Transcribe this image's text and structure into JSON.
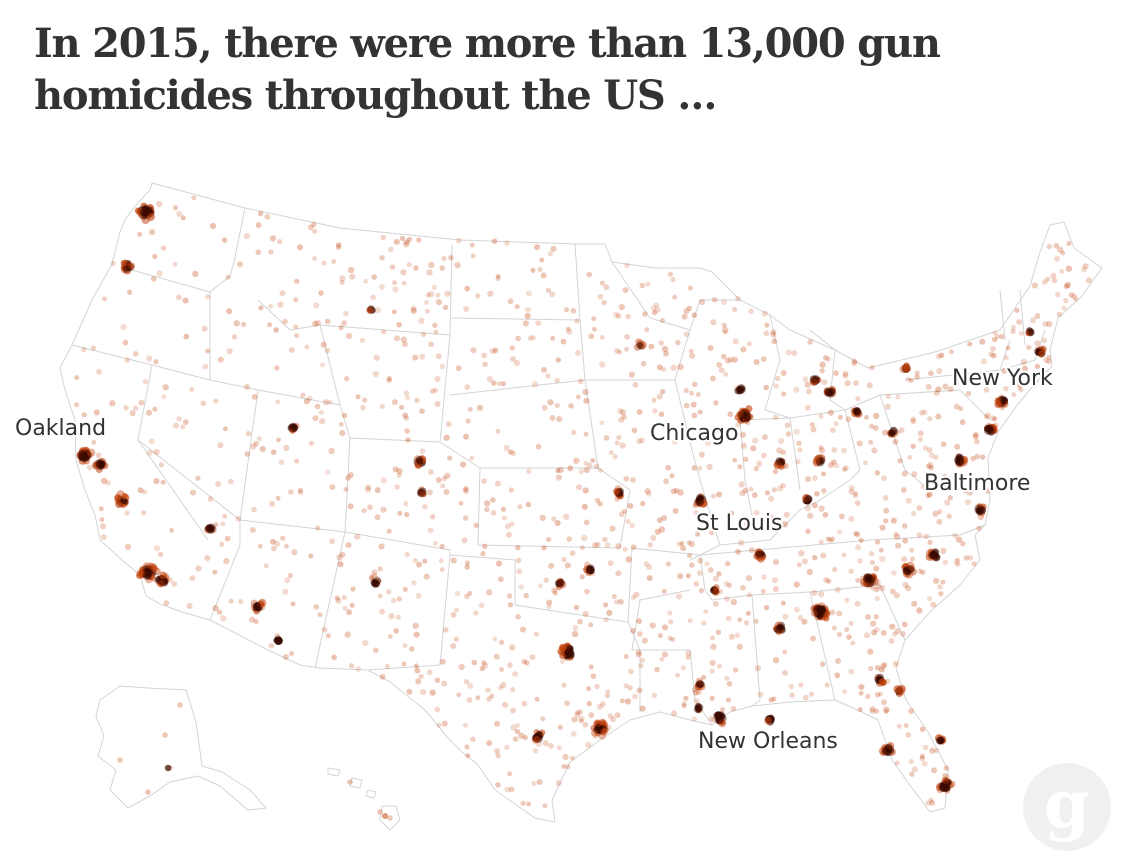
{
  "headline": "In 2015, there were more than 13,000 gun homicides throughout the US …",
  "map": {
    "dot_color": "#c2410c",
    "hotspot_color": "#3a0a00",
    "border_color": "#d4d4d4",
    "labels": {
      "oakland": "Oakland",
      "chicago": "Chicago",
      "new_york": "New York",
      "baltimore": "Baltimore",
      "st_louis": "St Louis",
      "new_orleans": "New Orleans"
    }
  },
  "logo": {
    "icon": "guardian-g-icon",
    "letter": "g"
  }
}
